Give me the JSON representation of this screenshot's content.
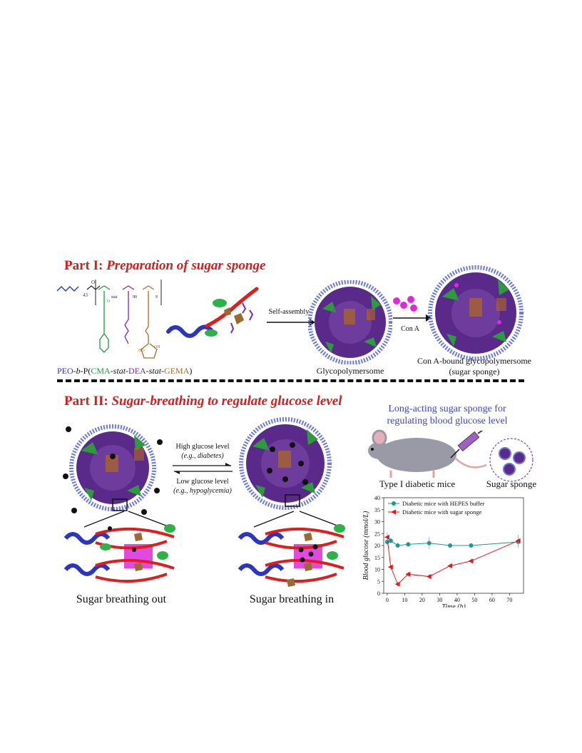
{
  "part1": {
    "prefix": "Part I:",
    "title": "Preparation of sugar sponge",
    "polymer_label": {
      "peo": "PEO",
      "b": "-b-",
      "p": "P(",
      "cma": "CMA",
      "stat1": "-stat-",
      "dea": "DEA",
      "stat2": "-stat-",
      "gema": "GEMA",
      "close": ")"
    },
    "subscripts": {
      "peo_n": "43",
      "cma_n": "stat",
      "dea_n": "90",
      "gema_n": "9"
    },
    "arrow1_label": "Self-assembly",
    "arrow2_label": "Con A",
    "vesicle1_label": "Glycopolymersome",
    "vesicle2_label_line1": "Con A-bound glycopolymersome",
    "vesicle2_label_line2": "(sugar sponge)"
  },
  "part2": {
    "prefix": "Part II:",
    "title": "Sugar-breathing to regulate glucose level",
    "high_line1": "High glucose level",
    "high_line2": "(e.g., diabetes)",
    "low_line1": "Low glucose level",
    "low_line2": "(e.g., hypoglycemia)",
    "out_label": "Sugar breathing out",
    "in_label": "Sugar breathing in",
    "longacting_line1": "Long-acting sugar sponge for",
    "longacting_line2": "regulating blood glucose level",
    "mouse_label": "Type I diabetic mice",
    "sponge_label": "Sugar sponge"
  },
  "chart_data": {
    "type": "line",
    "xlabel": "Time (h)",
    "ylabel": "Blood glucose (mmol/L)",
    "xlim": [
      -2,
      78
    ],
    "ylim": [
      0,
      40
    ],
    "xticks": [
      0,
      10,
      20,
      30,
      40,
      50,
      60,
      70
    ],
    "yticks": [
      0,
      5,
      10,
      15,
      20,
      25,
      30,
      35,
      40
    ],
    "legend_position": "top-left",
    "series": [
      {
        "name": "Diabetic mice with HEPES buffer",
        "color": "#1a9a92",
        "marker": "circle",
        "x": [
          0,
          2,
          6,
          12,
          24,
          36,
          48,
          75
        ],
        "y": [
          21.5,
          22,
          20,
          20.5,
          21,
          20,
          20,
          21.5
        ],
        "err": [
          1.5,
          1.2,
          1.0,
          1.0,
          2.5,
          1.0,
          1.0,
          2.5
        ]
      },
      {
        "name": "Diabetic mice with sugar sponge",
        "color": "#e01a1a",
        "marker": "triangle-left",
        "x": [
          0,
          2,
          6,
          12,
          24,
          36,
          48,
          75
        ],
        "y": [
          23.5,
          11,
          3.8,
          8,
          7,
          11.5,
          13.5,
          22
        ],
        "err": [
          2.0,
          1.0,
          1.0,
          1.0,
          1.0,
          1.0,
          1.0,
          2.5
        ]
      }
    ]
  },
  "colors": {
    "title_red": "#d81c1c",
    "peo_blue": "#2a36c0",
    "cma_green": "#1f9a3a",
    "dea_purple": "#7a2aa8",
    "gema_brown": "#b06a20",
    "vesicle_purple": "#5a2a8a"
  }
}
